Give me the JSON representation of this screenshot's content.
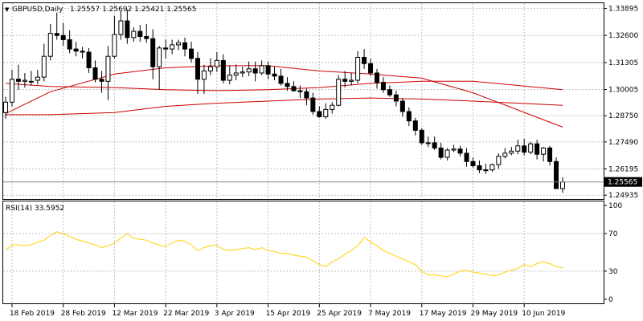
{
  "header": {
    "symbol_label": "GBPUSD,Daily",
    "ohlc_label": "1.25557 1.25692 1.25421 1.25565"
  },
  "price_axis": {
    "ticks": [
      "1.33895",
      "1.32600",
      "1.31305",
      "1.30005",
      "1.28750",
      "1.27490",
      "1.26195",
      "1.24935"
    ],
    "current_price_label": "1.25565"
  },
  "rsi_panel": {
    "label": "RSI(14) 33.5952",
    "ticks": [
      "100",
      "70",
      "30",
      "0"
    ],
    "levels": [
      70,
      30
    ],
    "line_color": "#ffd200"
  },
  "date_axis": {
    "labels": [
      "18 Feb 2019",
      "28 Feb 2019",
      "12 Mar 2019",
      "22 Mar 2019",
      "3 Apr 2019",
      "15 Apr 2019",
      "25 Apr 2019",
      "7 May 2019",
      "17 May 2019",
      "29 May 2019",
      "10 Jun 2019"
    ]
  },
  "colors": {
    "candle_body": "#000000",
    "moving_average": "#cc0000",
    "grid": "#c0c0c0",
    "rsi": "#ffd200"
  },
  "chart_data": [
    {
      "type": "candlestick",
      "title": "GBPUSD,Daily",
      "ylim": [
        1.2475,
        1.3415
      ],
      "x": [
        "15 Feb",
        "18 Feb",
        "19 Feb",
        "20 Feb",
        "21 Feb",
        "22 Feb",
        "25 Feb",
        "26 Feb",
        "27 Feb",
        "28 Feb",
        "1 Mar",
        "4 Mar",
        "5 Mar",
        "6 Mar",
        "7 Mar",
        "8 Mar",
        "11 Mar",
        "12 Mar",
        "13 Mar",
        "14 Mar",
        "15 Mar",
        "18 Mar",
        "19 Mar",
        "20 Mar",
        "21 Mar",
        "22 Mar",
        "25 Mar",
        "26 Mar",
        "27 Mar",
        "28 Mar",
        "29 Mar",
        "1 Apr",
        "2 Apr",
        "3 Apr",
        "4 Apr",
        "5 Apr",
        "8 Apr",
        "9 Apr",
        "10 Apr",
        "11 Apr",
        "12 Apr",
        "15 Apr",
        "16 Apr",
        "17 Apr",
        "18 Apr",
        "19 Apr",
        "22 Apr",
        "23 Apr",
        "24 Apr",
        "25 Apr",
        "26 Apr",
        "29 Apr",
        "30 Apr",
        "1 May",
        "2 May",
        "3 May",
        "6 May",
        "7 May",
        "8 May",
        "9 May",
        "10 May",
        "13 May",
        "14 May",
        "15 May",
        "16 May",
        "17 May",
        "20 May",
        "21 May",
        "22 May",
        "23 May",
        "24 May",
        "27 May",
        "28 May",
        "29 May",
        "30 May",
        "31 May",
        "3 Jun",
        "4 Jun",
        "5 Jun",
        "6 Jun",
        "7 Jun",
        "10 Jun",
        "11 Jun",
        "12 Jun",
        "13 Jun",
        "14 Jun",
        "17 Jun",
        "18 Jun"
      ],
      "series": [
        {
          "open": [
            1.289,
            1.294,
            1.305,
            1.304,
            1.304,
            1.3045,
            1.306,
            1.316,
            1.327,
            1.326,
            1.324,
            1.3195,
            1.3185,
            1.318,
            1.3105,
            1.305,
            1.304,
            1.316,
            1.3265,
            1.333,
            1.325,
            1.328,
            1.3255,
            1.3245,
            1.311,
            1.32,
            1.3195,
            1.3215,
            1.3225,
            1.3195,
            1.315,
            1.305,
            1.309,
            1.311,
            1.314,
            1.3045,
            1.307,
            1.308,
            1.3085,
            1.31,
            1.308,
            1.3115,
            1.3075,
            1.3065,
            1.303,
            1.3015,
            1.2995,
            1.299,
            1.296,
            1.2895,
            1.287,
            1.2905,
            1.2925,
            1.305,
            1.304,
            1.3045,
            1.3155,
            1.3125,
            1.308,
            1.3035,
            1.3,
            1.2975,
            1.2945,
            1.2895,
            1.285,
            1.2805,
            1.2745,
            1.2745,
            1.272,
            1.2675,
            1.271,
            1.2715,
            1.2695,
            1.2655,
            1.2635,
            1.2615,
            1.2615,
            1.264,
            1.268,
            1.2695,
            1.2705,
            1.273,
            1.27,
            1.274,
            1.269,
            1.272,
            1.2655,
            1.2525
          ],
          "high": [
            1.2965,
            1.3095,
            1.312,
            1.308,
            1.309,
            1.3095,
            1.322,
            1.3315,
            1.337,
            1.332,
            1.3285,
            1.323,
            1.3205,
            1.32,
            1.314,
            1.309,
            1.321,
            1.3355,
            1.338,
            1.3385,
            1.33,
            1.331,
            1.3315,
            1.329,
            1.321,
            1.324,
            1.324,
            1.324,
            1.325,
            1.323,
            1.318,
            1.312,
            1.315,
            1.318,
            1.317,
            1.3115,
            1.312,
            1.311,
            1.3135,
            1.3135,
            1.314,
            1.3135,
            1.311,
            1.31,
            1.306,
            1.304,
            1.302,
            1.3005,
            1.2985,
            1.292,
            1.2935,
            1.294,
            1.307,
            1.309,
            1.308,
            1.3185,
            1.3195,
            1.315,
            1.31,
            1.306,
            1.302,
            1.2995,
            1.296,
            1.2915,
            1.2865,
            1.2815,
            1.2775,
            1.2775,
            1.2745,
            1.272,
            1.2735,
            1.273,
            1.272,
            1.2675,
            1.266,
            1.2645,
            1.2645,
            1.2695,
            1.272,
            1.2725,
            1.276,
            1.2765,
            1.275,
            1.276,
            1.2725,
            1.273,
            1.2675,
            1.258
          ],
          "low": [
            1.286,
            1.292,
            1.3,
            1.301,
            1.302,
            1.3025,
            1.304,
            1.314,
            1.324,
            1.321,
            1.3175,
            1.316,
            1.315,
            1.308,
            1.3035,
            1.2985,
            1.295,
            1.315,
            1.324,
            1.322,
            1.323,
            1.323,
            1.3225,
            1.305,
            1.3,
            1.315,
            1.317,
            1.319,
            1.316,
            1.313,
            1.298,
            1.298,
            1.307,
            1.3085,
            1.303,
            1.3025,
            1.3045,
            1.306,
            1.3065,
            1.304,
            1.307,
            1.305,
            1.3045,
            1.302,
            1.2995,
            1.299,
            1.296,
            1.2925,
            1.288,
            1.2865,
            1.286,
            1.2885,
            1.292,
            1.301,
            1.302,
            1.303,
            1.31,
            1.3065,
            1.3005,
            1.2985,
            1.2965,
            1.292,
            1.287,
            1.2825,
            1.278,
            1.2735,
            1.2725,
            1.271,
            1.2665,
            1.266,
            1.27,
            1.268,
            1.263,
            1.2625,
            1.26,
            1.2595,
            1.2605,
            1.262,
            1.267,
            1.2685,
            1.269,
            1.2685,
            1.269,
            1.2665,
            1.2655,
            1.2635,
            1.253,
            1.2505
          ],
          "close": [
            1.294,
            1.305,
            1.304,
            1.3045,
            1.304,
            1.306,
            1.316,
            1.327,
            1.326,
            1.324,
            1.3195,
            1.3185,
            1.318,
            1.3105,
            1.305,
            1.304,
            1.316,
            1.3265,
            1.333,
            1.325,
            1.328,
            1.3255,
            1.3245,
            1.311,
            1.32,
            1.3195,
            1.3215,
            1.3225,
            1.3195,
            1.315,
            1.305,
            1.309,
            1.311,
            1.314,
            1.3045,
            1.307,
            1.308,
            1.3085,
            1.31,
            1.308,
            1.3115,
            1.3075,
            1.3065,
            1.303,
            1.3015,
            1.2995,
            1.299,
            1.296,
            1.2895,
            1.287,
            1.2905,
            1.2925,
            1.305,
            1.304,
            1.3045,
            1.3155,
            1.3125,
            1.308,
            1.3035,
            1.3,
            1.2975,
            1.2945,
            1.2895,
            1.285,
            1.2805,
            1.2745,
            1.2745,
            1.272,
            1.2675,
            1.271,
            1.2715,
            1.2695,
            1.2655,
            1.2635,
            1.2615,
            1.2615,
            1.264,
            1.268,
            1.2695,
            1.2705,
            1.273,
            1.27,
            1.274,
            1.269,
            1.272,
            1.2655,
            1.2525,
            1.2557
          ]
        }
      ],
      "moving_averages": [
        {
          "x": [
            "15 Feb",
            "26 Feb",
            "12 Mar",
            "22 Mar",
            "3 Apr",
            "15 Apr",
            "25 Apr",
            "7 May",
            "17 May",
            "29 May",
            "18 Jun"
          ],
          "values": [
            1.2885,
            1.299,
            1.3075,
            1.3105,
            1.3115,
            1.3115,
            1.309,
            1.3075,
            1.3055,
            1.2985,
            1.282
          ]
        },
        {
          "x": [
            "15 Feb",
            "26 Feb",
            "12 Mar",
            "22 Mar",
            "3 Apr",
            "15 Apr",
            "25 Apr",
            "7 May",
            "17 May",
            "29 May",
            "18 Jun"
          ],
          "values": [
            1.303,
            1.3015,
            1.301,
            1.3,
            1.2995,
            1.3,
            1.301,
            1.303,
            1.304,
            1.304,
            1.3
          ]
        },
        {
          "x": [
            "15 Feb",
            "26 Feb",
            "12 Mar",
            "22 Mar",
            "3 Apr",
            "15 Apr",
            "25 Apr",
            "7 May",
            "17 May",
            "29 May",
            "18 Jun"
          ],
          "values": [
            1.288,
            1.288,
            1.289,
            1.292,
            1.2935,
            1.2945,
            1.2955,
            1.296,
            1.2955,
            1.2945,
            1.2925
          ]
        }
      ]
    },
    {
      "type": "line",
      "title": "RSI(14) 33.5952",
      "ylim": [
        0,
        100
      ],
      "x": [
        "15 Feb",
        "18 Feb",
        "19 Feb",
        "20 Feb",
        "21 Feb",
        "22 Feb",
        "25 Feb",
        "26 Feb",
        "27 Feb",
        "28 Feb",
        "1 Mar",
        "4 Mar",
        "5 Mar",
        "6 Mar",
        "7 Mar",
        "8 Mar",
        "11 Mar",
        "12 Mar",
        "13 Mar",
        "14 Mar",
        "15 Mar",
        "18 Mar",
        "19 Mar",
        "20 Mar",
        "21 Mar",
        "22 Mar",
        "25 Mar",
        "26 Mar",
        "27 Mar",
        "28 Mar",
        "29 Mar",
        "1 Apr",
        "2 Apr",
        "3 Apr",
        "4 Apr",
        "5 Apr",
        "8 Apr",
        "9 Apr",
        "10 Apr",
        "11 Apr",
        "12 Apr",
        "15 Apr",
        "16 Apr",
        "17 Apr",
        "18 Apr",
        "19 Apr",
        "22 Apr",
        "23 Apr",
        "24 Apr",
        "25 Apr",
        "26 Apr",
        "29 Apr",
        "30 Apr",
        "1 May",
        "2 May",
        "3 May",
        "6 May",
        "7 May",
        "8 May",
        "9 May",
        "10 May",
        "13 May",
        "14 May",
        "15 May",
        "16 May",
        "17 May",
        "20 May",
        "21 May",
        "22 May",
        "23 May",
        "24 May",
        "27 May",
        "28 May",
        "29 May",
        "30 May",
        "31 May",
        "3 Jun",
        "4 Jun",
        "5 Jun",
        "6 Jun",
        "7 Jun",
        "10 Jun",
        "11 Jun",
        "12 Jun",
        "13 Jun",
        "14 Jun",
        "17 Jun",
        "18 Jun"
      ],
      "series": [
        {
          "name": "RSI(14)",
          "values": [
            52,
            58,
            58,
            57,
            58,
            61,
            63,
            68,
            72,
            70,
            67,
            64,
            62,
            60,
            58,
            55,
            57,
            60,
            65,
            70,
            65,
            64,
            63,
            60,
            58,
            56,
            60,
            63,
            62,
            58,
            52,
            55,
            57,
            58,
            53,
            52,
            53,
            54,
            55,
            53,
            55,
            52,
            51,
            49,
            49,
            47,
            46,
            45,
            41,
            37,
            35,
            40,
            43,
            48,
            52,
            57,
            66,
            61,
            57,
            52,
            49,
            46,
            43,
            40,
            37,
            30,
            26,
            26,
            25,
            24,
            27,
            30,
            31,
            29,
            28,
            27,
            25,
            26,
            29,
            31,
            33,
            37,
            35,
            38,
            40,
            38,
            35,
            33.6
          ]
        }
      ]
    }
  ]
}
